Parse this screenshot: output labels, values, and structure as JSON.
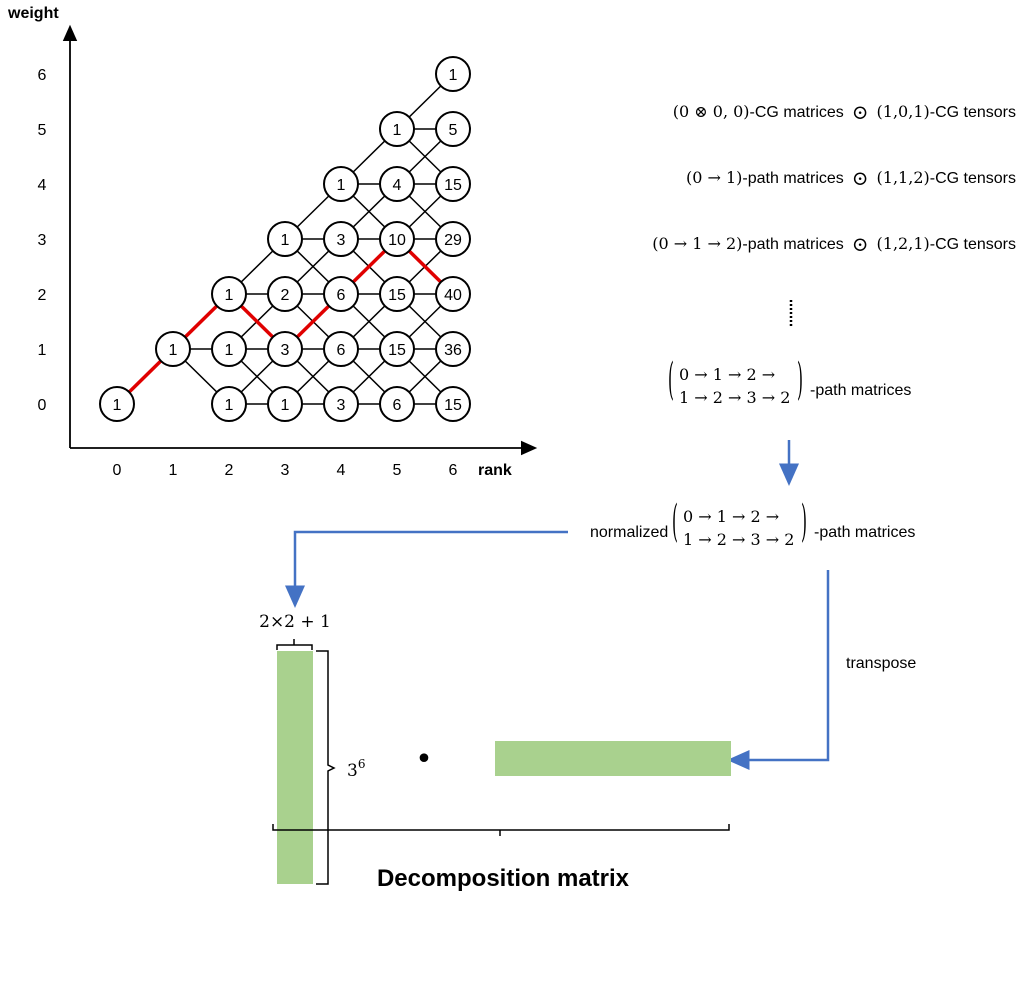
{
  "lattice": {
    "axis_y_label": "weight",
    "axis_x_label": "rank",
    "weight_ticks": [
      "0",
      "1",
      "2",
      "3",
      "4",
      "5",
      "6"
    ],
    "rank_ticks": [
      "0",
      "1",
      "2",
      "3",
      "4",
      "5",
      "6"
    ],
    "nodes": [
      {
        "rank": 0,
        "weight": 0,
        "value": "1"
      },
      {
        "rank": 1,
        "weight": 1,
        "value": "1"
      },
      {
        "rank": 2,
        "weight": 0,
        "value": "1"
      },
      {
        "rank": 2,
        "weight": 1,
        "value": "1"
      },
      {
        "rank": 2,
        "weight": 2,
        "value": "1"
      },
      {
        "rank": 3,
        "weight": 0,
        "value": "1"
      },
      {
        "rank": 3,
        "weight": 1,
        "value": "3"
      },
      {
        "rank": 3,
        "weight": 2,
        "value": "2"
      },
      {
        "rank": 3,
        "weight": 3,
        "value": "1"
      },
      {
        "rank": 4,
        "weight": 0,
        "value": "3"
      },
      {
        "rank": 4,
        "weight": 1,
        "value": "6"
      },
      {
        "rank": 4,
        "weight": 2,
        "value": "6"
      },
      {
        "rank": 4,
        "weight": 3,
        "value": "3"
      },
      {
        "rank": 4,
        "weight": 4,
        "value": "1"
      },
      {
        "rank": 5,
        "weight": 0,
        "value": "6"
      },
      {
        "rank": 5,
        "weight": 1,
        "value": "15"
      },
      {
        "rank": 5,
        "weight": 2,
        "value": "15"
      },
      {
        "rank": 5,
        "weight": 3,
        "value": "10"
      },
      {
        "rank": 5,
        "weight": 4,
        "value": "4"
      },
      {
        "rank": 5,
        "weight": 5,
        "value": "1"
      },
      {
        "rank": 6,
        "weight": 0,
        "value": "15"
      },
      {
        "rank": 6,
        "weight": 1,
        "value": "36"
      },
      {
        "rank": 6,
        "weight": 2,
        "value": "40"
      },
      {
        "rank": 6,
        "weight": 3,
        "value": "29"
      },
      {
        "rank": 6,
        "weight": 4,
        "value": "15"
      },
      {
        "rank": 6,
        "weight": 5,
        "value": "5"
      },
      {
        "rank": 6,
        "weight": 6,
        "value": "1"
      }
    ],
    "highlighted_path": [
      [
        0,
        0
      ],
      [
        1,
        1
      ],
      [
        2,
        2
      ],
      [
        3,
        1
      ],
      [
        4,
        2
      ],
      [
        5,
        3
      ],
      [
        6,
        2
      ]
    ],
    "highlight_color": "#e00000"
  },
  "right_panel": {
    "line1": {
      "left": "(0 ⊗ 0, 0)",
      "mid": "-CG matrices",
      "op": "⊙",
      "right": "(1,0,1)",
      "suffix": "-CG tensors"
    },
    "line2": {
      "left": "(0 → 1)",
      "mid": "-path matrices",
      "op": "⊙",
      "right": "(1,1,2)",
      "suffix": "-CG tensors"
    },
    "line3": {
      "left": "(0 → 1 → 2)",
      "mid": "-path matrices",
      "op": "⊙",
      "right": "(1,2,1)",
      "suffix": "-CG tensors"
    },
    "path_block": {
      "row1": "0 → 1 → 2 →",
      "row2": "1 → 2 → 3 → 2",
      "suffix": "-path matrices"
    },
    "normalized_block": {
      "prefix": "normalized",
      "row1": "0 → 1 → 2 →",
      "row2": "1 → 2 → 3 → 2",
      "suffix": "-path matrices"
    },
    "transpose_label": "transpose"
  },
  "matrix": {
    "width_label_base": "2×2 + 1",
    "height_label_base": "3",
    "height_label_exp": "6",
    "product_symbol": "•",
    "caption": "Decomposition matrix",
    "bar_color": "#a9d18e",
    "arrow_color": "#4472c4"
  }
}
